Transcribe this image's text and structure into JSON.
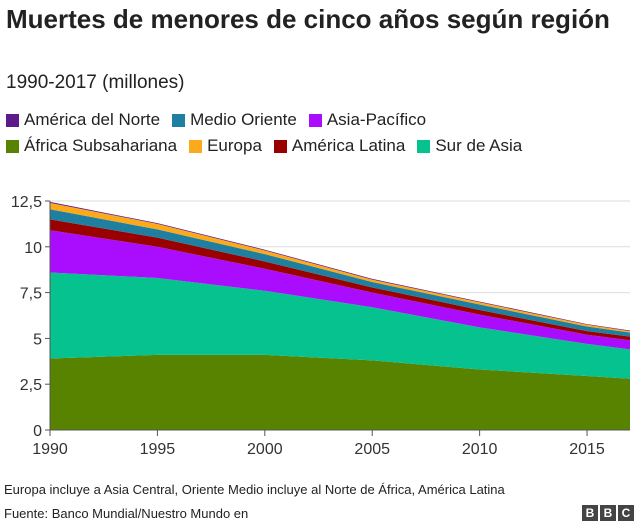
{
  "chart_data": {
    "type": "area",
    "stacked": true,
    "title": "Muertes de menores de cinco años según región",
    "subtitle": "1990-2017 (millones)",
    "x": [
      1990,
      1995,
      2000,
      2005,
      2010,
      2015,
      2017
    ],
    "xlim": [
      1990,
      2017
    ],
    "ylim": [
      0,
      12.5
    ],
    "xticks": [
      "1990",
      "1995",
      "2000",
      "2005",
      "2010",
      "2015"
    ],
    "yticks": [
      "0",
      "2,5",
      "5",
      "7,5",
      "10",
      "12,5"
    ],
    "grid": true,
    "legend_position": "top",
    "series": [
      {
        "name": "África Subsahariana",
        "color": "#588300",
        "values": [
          3.9,
          4.1,
          4.1,
          3.8,
          3.3,
          2.95,
          2.8
        ]
      },
      {
        "name": "Sur de Asia",
        "color": "#06c28f",
        "values": [
          4.7,
          4.2,
          3.5,
          2.9,
          2.3,
          1.75,
          1.6
        ]
      },
      {
        "name": "Asia-Pacífico",
        "color": "#aa0dfe",
        "values": [
          2.3,
          1.7,
          1.2,
          0.8,
          0.7,
          0.5,
          0.5
        ]
      },
      {
        "name": "América Latina",
        "color": "#990000",
        "values": [
          0.6,
          0.5,
          0.4,
          0.28,
          0.25,
          0.2,
          0.2
        ]
      },
      {
        "name": "Medio Oriente",
        "color": "#1f7fa0",
        "values": [
          0.55,
          0.45,
          0.4,
          0.3,
          0.3,
          0.25,
          0.22
        ]
      },
      {
        "name": "Europa",
        "color": "#fcaa1b",
        "values": [
          0.35,
          0.3,
          0.2,
          0.13,
          0.12,
          0.1,
          0.08
        ]
      },
      {
        "name": "América del Norte",
        "color": "#5c1a8a",
        "values": [
          0.05,
          0.04,
          0.04,
          0.04,
          0.04,
          0.03,
          0.03
        ]
      }
    ]
  },
  "legend": {
    "row1": [
      {
        "name": "América del Norte",
        "color": "#5c1a8a"
      },
      {
        "name": "Medio Oriente",
        "color": "#1f7fa0"
      },
      {
        "name": "Asia-Pacífico",
        "color": "#aa0dfe"
      }
    ],
    "row2": [
      {
        "name": "África Subsahariana",
        "color": "#588300"
      },
      {
        "name": "Europa",
        "color": "#fcaa1b"
      },
      {
        "name": "América Latina",
        "color": "#990000"
      },
      {
        "name": "Sur de Asia",
        "color": "#06c28f"
      }
    ]
  },
  "note": "Europa incluye a Asia Central, Oriente Medio incluye al Norte de África, América Latina",
  "source": "Fuente: Banco Mundial/Nuestro Mundo en",
  "logo": [
    "B",
    "B",
    "C"
  ]
}
